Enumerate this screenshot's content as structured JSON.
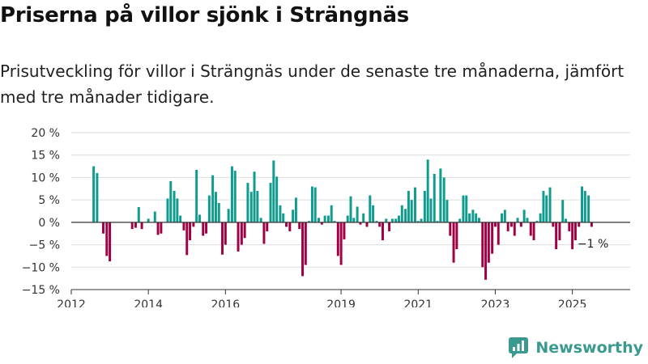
{
  "title": "Priserna på villor sjönk i Strängnäs",
  "subtitle": "Prisutveckling för villor i Strängnäs under de senaste tre månaderna, jämfört med tre månader tidigare.",
  "brand": "Newsworthy",
  "colors": {
    "positive": "#0f9b8e",
    "negative": "#a10045",
    "grid": "#dddddd",
    "axis": "#333333",
    "brand": "#3a9a90"
  },
  "chart_data": {
    "type": "bar",
    "title": "Priserna på villor sjönk i Strängnäs",
    "xlabel": "",
    "ylabel": "",
    "x_unit": "decimal year (monthly bars)",
    "ylim": [
      -15,
      20
    ],
    "xlim": [
      2012.0,
      2026.5
    ],
    "y_ticks": [
      20,
      15,
      10,
      5,
      0,
      -5,
      -10,
      -15
    ],
    "y_tick_labels": [
      "20 %",
      "15 %",
      "10 %",
      "5 %",
      "0 %",
      "−5 %",
      "−10 %",
      "−15 %"
    ],
    "x_ticks": [
      2012,
      2014,
      2016,
      2019,
      2021,
      2023,
      2025
    ],
    "x_tick_labels": [
      "2012",
      "2014",
      "2016",
      "2019",
      "2021",
      "2023",
      "2025"
    ],
    "grid": true,
    "bars": [
      {
        "x": 2012.58,
        "y": 12.5
      },
      {
        "x": 2012.67,
        "y": 11.0
      },
      {
        "x": 2012.83,
        "y": -2.5
      },
      {
        "x": 2012.92,
        "y": -7.5
      },
      {
        "x": 2013.0,
        "y": -8.7
      },
      {
        "x": 2013.58,
        "y": -1.5
      },
      {
        "x": 2013.67,
        "y": -1.2
      },
      {
        "x": 2013.75,
        "y": 3.4
      },
      {
        "x": 2013.83,
        "y": -1.5
      },
      {
        "x": 2014.0,
        "y": 0.8
      },
      {
        "x": 2014.17,
        "y": 2.4
      },
      {
        "x": 2014.25,
        "y": -2.8
      },
      {
        "x": 2014.33,
        "y": -2.5
      },
      {
        "x": 2014.5,
        "y": 5.3
      },
      {
        "x": 2014.58,
        "y": 9.2
      },
      {
        "x": 2014.67,
        "y": 7.0
      },
      {
        "x": 2014.75,
        "y": 5.3
      },
      {
        "x": 2014.83,
        "y": 1.5
      },
      {
        "x": 2014.92,
        "y": -1.8
      },
      {
        "x": 2015.0,
        "y": -7.3
      },
      {
        "x": 2015.08,
        "y": -4.0
      },
      {
        "x": 2015.17,
        "y": -1.0
      },
      {
        "x": 2015.25,
        "y": 11.7
      },
      {
        "x": 2015.33,
        "y": 1.7
      },
      {
        "x": 2015.42,
        "y": -3.0
      },
      {
        "x": 2015.5,
        "y": -2.5
      },
      {
        "x": 2015.58,
        "y": 6.0
      },
      {
        "x": 2015.67,
        "y": 10.5
      },
      {
        "x": 2015.75,
        "y": 6.8
      },
      {
        "x": 2015.83,
        "y": 4.3
      },
      {
        "x": 2015.92,
        "y": -7.2
      },
      {
        "x": 2016.0,
        "y": -5.0
      },
      {
        "x": 2016.08,
        "y": 3.0
      },
      {
        "x": 2016.17,
        "y": 12.5
      },
      {
        "x": 2016.25,
        "y": 11.5
      },
      {
        "x": 2016.33,
        "y": -6.5
      },
      {
        "x": 2016.42,
        "y": -5.0
      },
      {
        "x": 2016.5,
        "y": -3.5
      },
      {
        "x": 2016.58,
        "y": 8.8
      },
      {
        "x": 2016.67,
        "y": 6.8
      },
      {
        "x": 2016.75,
        "y": 11.3
      },
      {
        "x": 2016.83,
        "y": 7.0
      },
      {
        "x": 2016.92,
        "y": 1.0
      },
      {
        "x": 2017.0,
        "y": -4.8
      },
      {
        "x": 2017.08,
        "y": -2.0
      },
      {
        "x": 2017.17,
        "y": 8.8
      },
      {
        "x": 2017.25,
        "y": 13.8
      },
      {
        "x": 2017.33,
        "y": 10.2
      },
      {
        "x": 2017.42,
        "y": 3.8
      },
      {
        "x": 2017.5,
        "y": 2.0
      },
      {
        "x": 2017.58,
        "y": -1.0
      },
      {
        "x": 2017.67,
        "y": -2.0
      },
      {
        "x": 2017.75,
        "y": 2.8
      },
      {
        "x": 2017.83,
        "y": 5.5
      },
      {
        "x": 2017.92,
        "y": -1.5
      },
      {
        "x": 2018.0,
        "y": -12.0
      },
      {
        "x": 2018.08,
        "y": -9.5
      },
      {
        "x": 2018.17,
        "y": 0.3
      },
      {
        "x": 2018.25,
        "y": 8.0
      },
      {
        "x": 2018.33,
        "y": 7.8
      },
      {
        "x": 2018.42,
        "y": 1.0
      },
      {
        "x": 2018.5,
        "y": -0.5
      },
      {
        "x": 2018.58,
        "y": 1.5
      },
      {
        "x": 2018.67,
        "y": 1.5
      },
      {
        "x": 2018.75,
        "y": 3.8
      },
      {
        "x": 2018.83,
        "y": 0.3
      },
      {
        "x": 2018.92,
        "y": -7.5
      },
      {
        "x": 2019.0,
        "y": -9.5
      },
      {
        "x": 2019.08,
        "y": -3.8
      },
      {
        "x": 2019.17,
        "y": 1.5
      },
      {
        "x": 2019.25,
        "y": 5.8
      },
      {
        "x": 2019.33,
        "y": 1.0
      },
      {
        "x": 2019.42,
        "y": 3.5
      },
      {
        "x": 2019.5,
        "y": -0.5
      },
      {
        "x": 2019.58,
        "y": 2.0
      },
      {
        "x": 2019.67,
        "y": -1.0
      },
      {
        "x": 2019.75,
        "y": 6.0
      },
      {
        "x": 2019.83,
        "y": 3.8
      },
      {
        "x": 2019.92,
        "y": 0.3
      },
      {
        "x": 2020.0,
        "y": -1.0
      },
      {
        "x": 2020.08,
        "y": -4.0
      },
      {
        "x": 2020.17,
        "y": 0.8
      },
      {
        "x": 2020.25,
        "y": -2.0
      },
      {
        "x": 2020.33,
        "y": 0.8
      },
      {
        "x": 2020.42,
        "y": 0.8
      },
      {
        "x": 2020.5,
        "y": 1.5
      },
      {
        "x": 2020.58,
        "y": 3.8
      },
      {
        "x": 2020.67,
        "y": 3.0
      },
      {
        "x": 2020.75,
        "y": 7.0
      },
      {
        "x": 2020.83,
        "y": 5.0
      },
      {
        "x": 2020.92,
        "y": 7.8
      },
      {
        "x": 2021.0,
        "y": 0.3
      },
      {
        "x": 2021.08,
        "y": 0.8
      },
      {
        "x": 2021.17,
        "y": 7.0
      },
      {
        "x": 2021.25,
        "y": 14.0
      },
      {
        "x": 2021.33,
        "y": 5.3
      },
      {
        "x": 2021.42,
        "y": 10.8
      },
      {
        "x": 2021.5,
        "y": 0.3
      },
      {
        "x": 2021.58,
        "y": 12.0
      },
      {
        "x": 2021.67,
        "y": 10.0
      },
      {
        "x": 2021.75,
        "y": 5.0
      },
      {
        "x": 2021.83,
        "y": -3.0
      },
      {
        "x": 2021.92,
        "y": -9.0
      },
      {
        "x": 2022.0,
        "y": -6.0
      },
      {
        "x": 2022.08,
        "y": 0.8
      },
      {
        "x": 2022.17,
        "y": 6.0
      },
      {
        "x": 2022.25,
        "y": 6.0
      },
      {
        "x": 2022.33,
        "y": 2.0
      },
      {
        "x": 2022.42,
        "y": 2.8
      },
      {
        "x": 2022.5,
        "y": 2.0
      },
      {
        "x": 2022.58,
        "y": 1.0
      },
      {
        "x": 2022.67,
        "y": -10.0
      },
      {
        "x": 2022.75,
        "y": -12.8
      },
      {
        "x": 2022.83,
        "y": -9.0
      },
      {
        "x": 2022.92,
        "y": -7.0
      },
      {
        "x": 2023.0,
        "y": -1.0
      },
      {
        "x": 2023.08,
        "y": -5.0
      },
      {
        "x": 2023.17,
        "y": 2.0
      },
      {
        "x": 2023.25,
        "y": 2.8
      },
      {
        "x": 2023.33,
        "y": -2.0
      },
      {
        "x": 2023.42,
        "y": -1.0
      },
      {
        "x": 2023.5,
        "y": -3.0
      },
      {
        "x": 2023.58,
        "y": 1.0
      },
      {
        "x": 2023.67,
        "y": -1.0
      },
      {
        "x": 2023.75,
        "y": 2.8
      },
      {
        "x": 2023.83,
        "y": 1.0
      },
      {
        "x": 2023.92,
        "y": -3.0
      },
      {
        "x": 2024.0,
        "y": -4.0
      },
      {
        "x": 2024.08,
        "y": 0.3
      },
      {
        "x": 2024.17,
        "y": 2.0
      },
      {
        "x": 2024.25,
        "y": 7.0
      },
      {
        "x": 2024.33,
        "y": 6.0
      },
      {
        "x": 2024.42,
        "y": 7.8
      },
      {
        "x": 2024.5,
        "y": -1.0
      },
      {
        "x": 2024.58,
        "y": -6.0
      },
      {
        "x": 2024.67,
        "y": -4.0
      },
      {
        "x": 2024.75,
        "y": 5.0
      },
      {
        "x": 2024.83,
        "y": 0.8
      },
      {
        "x": 2024.92,
        "y": -2.0
      },
      {
        "x": 2025.0,
        "y": -6.0
      },
      {
        "x": 2025.08,
        "y": -4.0
      },
      {
        "x": 2025.17,
        "y": -1.0
      },
      {
        "x": 2025.25,
        "y": 8.0
      },
      {
        "x": 2025.33,
        "y": 7.0
      },
      {
        "x": 2025.42,
        "y": 6.0
      },
      {
        "x": 2025.5,
        "y": -1.0
      }
    ],
    "annotations": [
      {
        "label": "−1 %",
        "x": 2025.5,
        "y": -1.0
      }
    ]
  }
}
